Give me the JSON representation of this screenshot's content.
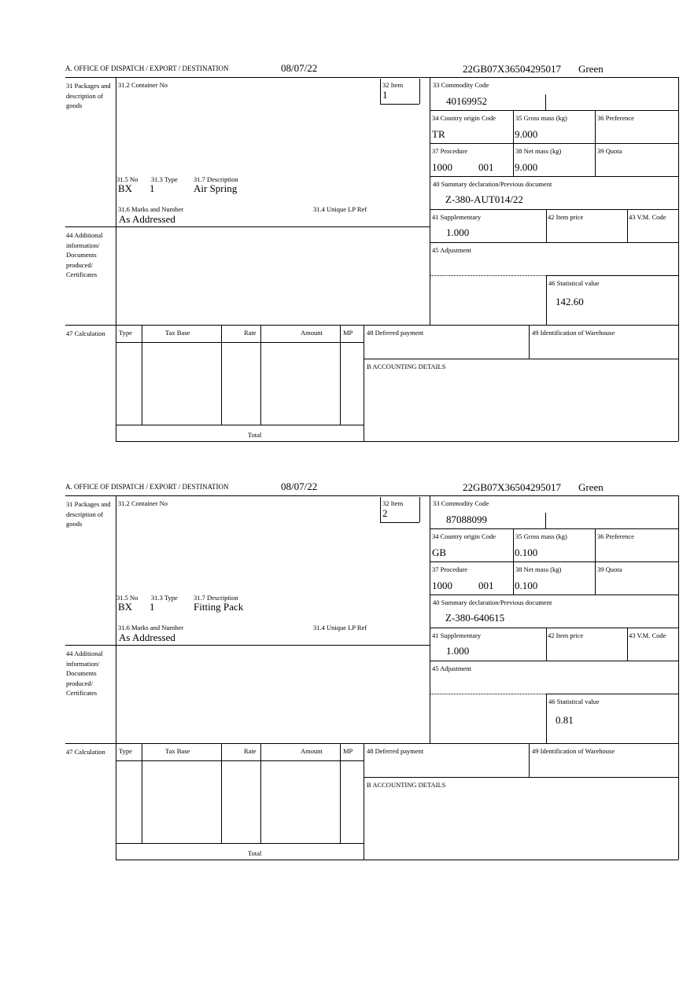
{
  "labels": {
    "office": "A. OFFICE OF DISPATCH / EXPORT / DESTINATION",
    "packages": "31 Packages and description of goods",
    "container": "31.2 Container No",
    "item": "32 Item",
    "no": "31.5 No",
    "type": "31.3 Type",
    "description": "31.7 Description",
    "marks": "31.6 Marks and Number",
    "unique_ref": "31.4 Unique LP Ref",
    "commodity": "33 Commodity Code",
    "country": "34 Country origin Code",
    "gross": "35 Gross mass (kg)",
    "preference": "36 Preference",
    "procedure": "37 Procedure",
    "net": "38 Net mass (kg)",
    "quota": "39 Quota",
    "summary": "40 Summary declaration/Previous document",
    "supplementary": "41 Supplementary",
    "item_price": "42 Item price",
    "vm_code": "43 V.M. Code",
    "additional": "44 Additional information/ Documents produced/ Certificates",
    "adjustment": "45 Adjustment",
    "statistical": "46 Statistical value",
    "calculation": "47 Calculation",
    "calc_type": "Type",
    "calc_tax_base": "Tax Base",
    "calc_rate": "Rate",
    "calc_amount": "Amount",
    "calc_mp": "MP",
    "deferred": "48 Deferred payment",
    "warehouse": "49 Identification of Warehouse",
    "accounting": "B ACCOUNTING DETAILS",
    "total": "Total"
  },
  "items": [
    {
      "date": "08/07/22",
      "reference": "22GB07X36504295017",
      "route": "Green",
      "item": "1",
      "pkg_kind": "BX",
      "pkg_count": "1",
      "description": "Air Spring",
      "marks": "As Addressed",
      "commodity": "40169952",
      "country": "TR",
      "gross": "9.000",
      "procedure": "1000",
      "procedure_add": "001",
      "net": "9.000",
      "summary": "Z-380-AUT014/22",
      "supplementary": "1.000",
      "statistical": "142.60"
    },
    {
      "date": "08/07/22",
      "reference": "22GB07X36504295017",
      "route": "Green",
      "item": "2",
      "pkg_kind": "BX",
      "pkg_count": "1",
      "description": "Fitting Pack",
      "marks": "As Addressed",
      "commodity": "87088099",
      "country": "GB",
      "gross": "0.100",
      "procedure": "1000",
      "procedure_add": "001",
      "net": "0.100",
      "summary": "Z-380-640615",
      "supplementary": "1.000",
      "statistical": "0.81"
    }
  ]
}
